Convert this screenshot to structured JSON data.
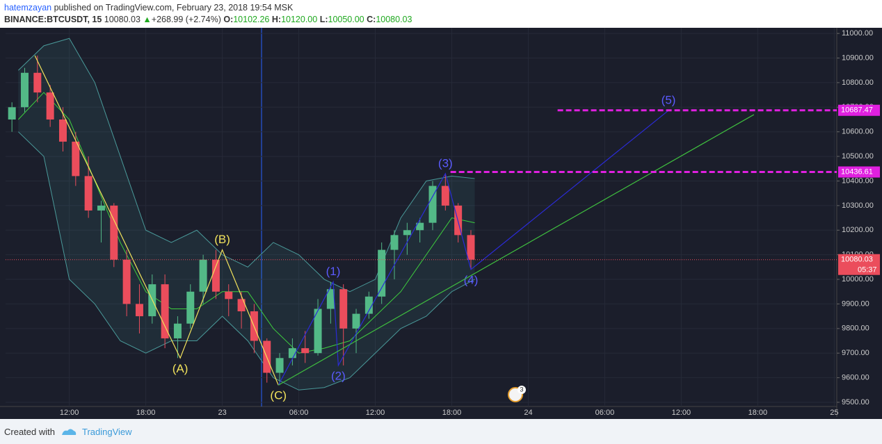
{
  "header": {
    "author": "hatemzayan",
    "published": "published on TradingView.com, February 23, 2018 19:54 MSK",
    "symbol": "BINANCE:BTCUSDT, 15",
    "last": "10080.03",
    "arrow": "▲",
    "change": "+268.99 (+2.74%)",
    "o_label": "O:",
    "open": "10102.26",
    "h_label": "H:",
    "high": "10120.00",
    "l_label": "L:",
    "low": "10050.00",
    "c_label": "C:",
    "close": "10080.03"
  },
  "chart_data": {
    "type": "candlestick",
    "x": [
      7.5,
      8.5,
      9.5,
      10.5,
      11.5,
      12.5,
      13.5,
      14.5,
      15.5,
      16.5,
      17.5,
      18.5,
      19.5,
      20.5,
      21.5,
      22.5,
      23.5,
      24.5,
      25.5,
      26.5,
      27.5,
      28.5,
      29.5,
      30.5,
      31.5,
      32.5,
      33.5,
      34.5,
      35.5,
      36.5,
      37.5,
      38.5,
      39.5,
      40.5,
      41.5,
      42.5,
      43.5
    ],
    "open": [
      10650,
      10700,
      10840,
      10760,
      10650,
      10560,
      10420,
      10280,
      10300,
      10080,
      9900,
      9850,
      9980,
      9760,
      9820,
      9950,
      10080,
      9950,
      9920,
      9870,
      9750,
      9620,
      9680,
      9720,
      9700,
      9880,
      9960,
      9800,
      9860,
      9930,
      10120,
      10180,
      10200,
      10230,
      10380,
      10300,
      10180
    ],
    "high": [
      10720,
      10860,
      10910,
      10790,
      10700,
      10600,
      10500,
      10320,
      10310,
      10120,
      9980,
      10020,
      10020,
      9850,
      9980,
      10100,
      10120,
      9980,
      9950,
      9900,
      9760,
      9700,
      9760,
      9790,
      9920,
      9990,
      9980,
      9880,
      9950,
      10150,
      10200,
      10230,
      10250,
      10400,
      10430,
      10310,
      10200
    ],
    "low": [
      10600,
      10680,
      10720,
      10620,
      10520,
      10380,
      10250,
      10150,
      10050,
      9850,
      9780,
      9820,
      9720,
      9680,
      9800,
      9900,
      9920,
      9850,
      9800,
      9700,
      9580,
      9570,
      9650,
      9660,
      9690,
      9820,
      9650,
      9700,
      9840,
      9900,
      10000,
      10100,
      10150,
      10200,
      10280,
      10150,
      10040
    ],
    "close": [
      10700,
      10840,
      10760,
      10650,
      10560,
      10420,
      10280,
      10300,
      10080,
      9900,
      9850,
      9980,
      9760,
      9820,
      9950,
      10080,
      9950,
      9920,
      9870,
      9750,
      9620,
      9680,
      9720,
      9700,
      9880,
      9960,
      9800,
      9860,
      9930,
      10120,
      10180,
      10200,
      10230,
      10380,
      10300,
      10180,
      10080
    ],
    "up_color": "#53b987",
    "down_color": "#eb4d5c",
    "xlim": [
      7,
      72.2
    ],
    "xticks": [
      {
        "value": 12,
        "label": "12:00"
      },
      {
        "value": 18,
        "label": "18:00"
      },
      {
        "value": 24,
        "label": "23"
      },
      {
        "value": 30,
        "label": "06:00"
      },
      {
        "value": 36,
        "label": "12:00"
      },
      {
        "value": 42,
        "label": "18:00"
      },
      {
        "value": 48,
        "label": "24"
      },
      {
        "value": 54,
        "label": "06:00"
      },
      {
        "value": 60,
        "label": "12:00"
      },
      {
        "value": 66,
        "label": "18:00"
      },
      {
        "value": 72,
        "label": "25"
      }
    ],
    "ylim": [
      9483,
      11023
    ],
    "yticks": [
      {
        "value": 9500,
        "label": "9500.00"
      },
      {
        "value": 9600,
        "label": "9600.00"
      },
      {
        "value": 9700,
        "label": "9700.00"
      },
      {
        "value": 9800,
        "label": "9800.00"
      },
      {
        "value": 9900,
        "label": "9900.00"
      },
      {
        "value": 10000,
        "label": "10000.00"
      },
      {
        "value": 10100,
        "label": "10100.00"
      },
      {
        "value": 10200,
        "label": "10200.00"
      },
      {
        "value": 10300,
        "label": "10300.00"
      },
      {
        "value": 10400,
        "label": "10400.00"
      },
      {
        "value": 10500,
        "label": "10500.00"
      },
      {
        "value": 10600,
        "label": "10600.00"
      },
      {
        "value": 10700,
        "label": "10700.00"
      },
      {
        "value": 10800,
        "label": "10800.00"
      },
      {
        "value": 10900,
        "label": "10900.00"
      },
      {
        "value": 11000,
        "label": "11000.00"
      }
    ],
    "indicators": {
      "x": [
        8,
        10,
        12,
        14,
        16,
        18,
        20,
        22,
        24,
        26,
        28,
        30,
        32,
        34,
        36,
        38,
        40,
        42,
        43.8
      ],
      "upper": [
        10850,
        10950,
        10980,
        10800,
        10500,
        10200,
        10150,
        10200,
        10100,
        10050,
        10150,
        10100,
        10000,
        9950,
        10000,
        10250,
        10400,
        10420,
        10410
      ],
      "basis": [
        10650,
        10760,
        10650,
        10400,
        10150,
        9950,
        9880,
        9880,
        9950,
        9950,
        9800,
        9700,
        9720,
        9750,
        9850,
        9950,
        10100,
        10250,
        10230
      ],
      "lower": [
        10600,
        10500,
        10000,
        9900,
        9750,
        9700,
        9750,
        9750,
        9850,
        9750,
        9600,
        9550,
        9560,
        9600,
        9700,
        9800,
        9850,
        9950,
        10000
      ],
      "band_color": "#4a9a9a",
      "basis_color": "#3ecf3e"
    },
    "drawings": [
      {
        "color": "#f2e35c",
        "x": [
          9.3,
          20.7,
          24,
          28.4
        ],
        "y": [
          10910,
          9680,
          10120,
          9570
        ],
        "labels": [
          null,
          "(A)",
          "(B)",
          "(C)"
        ]
      },
      {
        "color": "#2b2bd6",
        "label_color": "#5b5bff",
        "x": [
          28.4,
          32.7,
          33.1,
          41.5,
          43.5,
          59
        ],
        "y": [
          9570,
          9990,
          9650,
          10430,
          10040,
          10687
        ],
        "labels": [
          null,
          "(1)",
          "(2)",
          "(3)",
          "(4)",
          "(5)"
        ]
      },
      {
        "color": "#3fbf3f",
        "x": [
          28.4,
          65.7
        ],
        "y": [
          9570,
          10670
        ],
        "labels": [
          null,
          null
        ]
      }
    ],
    "levels": [
      {
        "value": 10687.47,
        "start": 50.3
      },
      {
        "value": 10436.61,
        "start": 41.9
      }
    ],
    "level_color": "#e020e0",
    "last_price": {
      "value": 10080.03,
      "countdown": "05:37"
    },
    "badge": "3"
  },
  "footer": {
    "created": "Created with",
    "brand": "TradingView"
  }
}
